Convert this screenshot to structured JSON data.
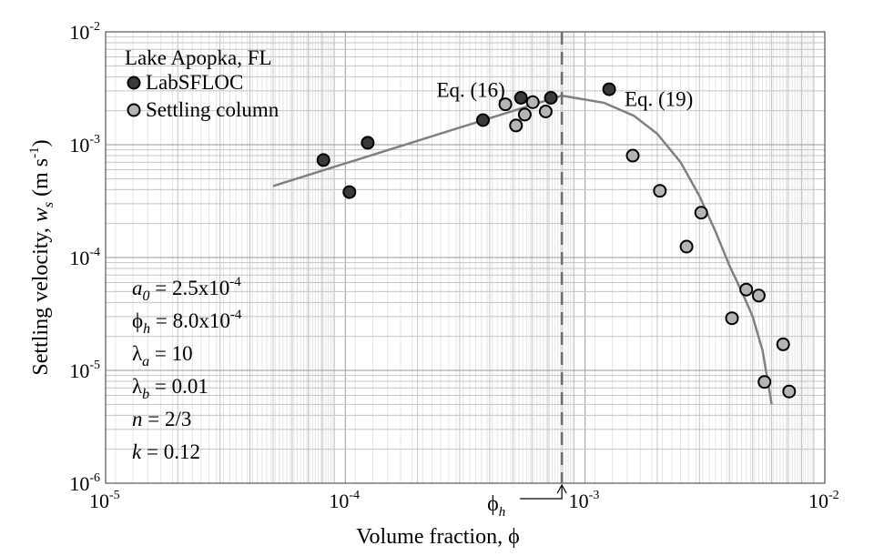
{
  "chart_data": {
    "type": "scatter",
    "title": "",
    "xlabel": "Volume fraction, ϕ",
    "ylabel_parts": {
      "prefix": "Settling velocity, ",
      "var": "w",
      "sub": "s",
      "unit_open": " (m s",
      "unit_sup": "-1",
      "unit_close": ")"
    },
    "xscale": "log",
    "yscale": "log",
    "xlim": [
      1e-05,
      0.01
    ],
    "ylim": [
      1e-06,
      0.01
    ],
    "x_ticks": [
      {
        "base": "10",
        "exp": "-5"
      },
      {
        "base": "10",
        "exp": "-4"
      },
      {
        "base": "10",
        "exp": "-3"
      },
      {
        "base": "10",
        "exp": "-2"
      }
    ],
    "y_ticks": [
      {
        "base": "10",
        "exp": "-6"
      },
      {
        "base": "10",
        "exp": "-5"
      },
      {
        "base": "10",
        "exp": "-4"
      },
      {
        "base": "10",
        "exp": "-3"
      },
      {
        "base": "10",
        "exp": "-2"
      }
    ],
    "grid": true,
    "legend": {
      "title": "Lake Apopka, FL",
      "placement": "top-left",
      "entries": [
        "LabSFLOC",
        "Settling column"
      ]
    },
    "series": [
      {
        "name": "LabSFLOC",
        "color": "#3a3a3a",
        "points": [
          {
            "x": 8.1e-05,
            "y": 0.00073
          },
          {
            "x": 0.000104,
            "y": 0.00038
          },
          {
            "x": 0.000124,
            "y": 0.00104
          },
          {
            "x": 0.000375,
            "y": 0.00165
          },
          {
            "x": 0.00054,
            "y": 0.0026
          },
          {
            "x": 0.00072,
            "y": 0.0026
          },
          {
            "x": 0.00126,
            "y": 0.0031
          }
        ]
      },
      {
        "name": "Settling column",
        "color": "#b4b4b4",
        "points": [
          {
            "x": 0.000465,
            "y": 0.00228
          },
          {
            "x": 0.000515,
            "y": 0.00148
          },
          {
            "x": 0.00056,
            "y": 0.00185
          },
          {
            "x": 0.000605,
            "y": 0.00238
          },
          {
            "x": 0.000685,
            "y": 0.00197
          },
          {
            "x": 0.00158,
            "y": 0.0008
          },
          {
            "x": 0.00205,
            "y": 0.00039
          },
          {
            "x": 0.00265,
            "y": 0.000125
          },
          {
            "x": 0.00305,
            "y": 0.00025
          },
          {
            "x": 0.0041,
            "y": 2.9e-05
          },
          {
            "x": 0.0047,
            "y": 5.2e-05
          },
          {
            "x": 0.0053,
            "y": 4.6e-05
          },
          {
            "x": 0.0056,
            "y": 7.9e-06
          },
          {
            "x": 0.0067,
            "y": 1.7e-05
          },
          {
            "x": 0.0071,
            "y": 6.5e-06
          }
        ]
      }
    ],
    "fit_curves": [
      {
        "label": "Eq. (16)",
        "color": "#808080",
        "points": [
          {
            "x": 5e-05,
            "y": 0.00043
          },
          {
            "x": 0.0008,
            "y": 0.00272
          }
        ]
      },
      {
        "label": "Eq. (19)",
        "color": "#808080",
        "points": [
          {
            "x": 0.0008,
            "y": 0.00272
          },
          {
            "x": 0.0012,
            "y": 0.00235
          },
          {
            "x": 0.0016,
            "y": 0.0018
          },
          {
            "x": 0.002,
            "y": 0.00125
          },
          {
            "x": 0.0025,
            "y": 0.0007
          },
          {
            "x": 0.003,
            "y": 0.00035
          },
          {
            "x": 0.0035,
            "y": 0.00017
          },
          {
            "x": 0.004,
            "y": 8.5e-05
          },
          {
            "x": 0.0045,
            "y": 5e-05
          },
          {
            "x": 0.005,
            "y": 3e-05
          },
          {
            "x": 0.0055,
            "y": 1.5e-05
          },
          {
            "x": 0.006,
            "y": 5e-06
          }
        ]
      }
    ],
    "phi_h": {
      "value": 0.0008,
      "label_base": "ϕ",
      "label_sub": "h"
    },
    "parameters": [
      {
        "sym": "a",
        "sub": "0",
        "mid": " = 2.5x10",
        "sup": "-4"
      },
      {
        "sym": "ϕ",
        "sub": "h",
        "mid": " = 8.0x10",
        "sup": "-4"
      },
      {
        "sym": "λ",
        "sub": "a",
        "mid": " = 10",
        "sup": ""
      },
      {
        "sym": "λ",
        "sub": "b",
        "mid": " = 0.01",
        "sup": ""
      },
      {
        "sym": "n",
        "sub": "",
        "mid": " = 2/3",
        "sup": ""
      },
      {
        "sym": "k",
        "sub": "",
        "mid": " = 0.12",
        "sup": ""
      }
    ]
  }
}
